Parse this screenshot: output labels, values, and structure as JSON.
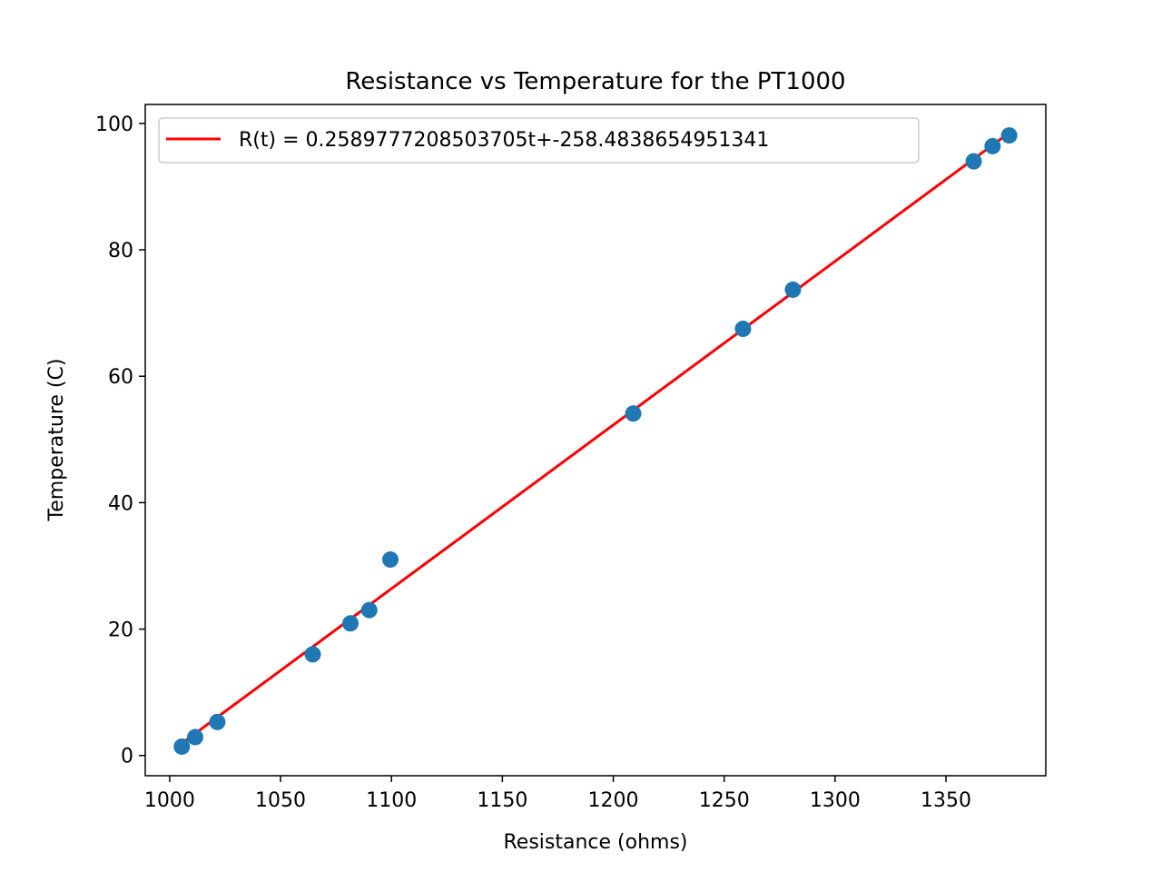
{
  "chart_data": {
    "type": "scatter",
    "title": "Resistance vs Temperature for the PT1000",
    "xlabel": "Resistance (ohms)",
    "ylabel": "Temperature (C)",
    "xlim": [
      989,
      1395
    ],
    "ylim": [
      -3.2,
      103
    ],
    "xticks": [
      1000,
      1050,
      1100,
      1150,
      1200,
      1250,
      1300,
      1350
    ],
    "yticks": [
      0,
      20,
      40,
      60,
      80,
      100
    ],
    "grid": false,
    "legend_position": "upper-left",
    "points": {
      "color": "#1f77b4",
      "x": [
        1005.5,
        1011.5,
        1021.5,
        1064.5,
        1081.5,
        1090,
        1099.5,
        1209,
        1258.5,
        1281,
        1362.5,
        1371,
        1378.5
      ],
      "y": [
        1.4,
        2.9,
        5.3,
        16.0,
        20.9,
        23.0,
        31.0,
        54.1,
        67.5,
        73.7,
        94.0,
        96.4,
        98.1
      ]
    },
    "fit_line": {
      "label": "R(t) = 0.2589777208503705t+-258.4838654951341",
      "color": "#ff0000",
      "slope": 0.2589777208503705,
      "intercept": -258.4838654951341,
      "x_range": [
        1005.5,
        1378.5
      ]
    }
  }
}
